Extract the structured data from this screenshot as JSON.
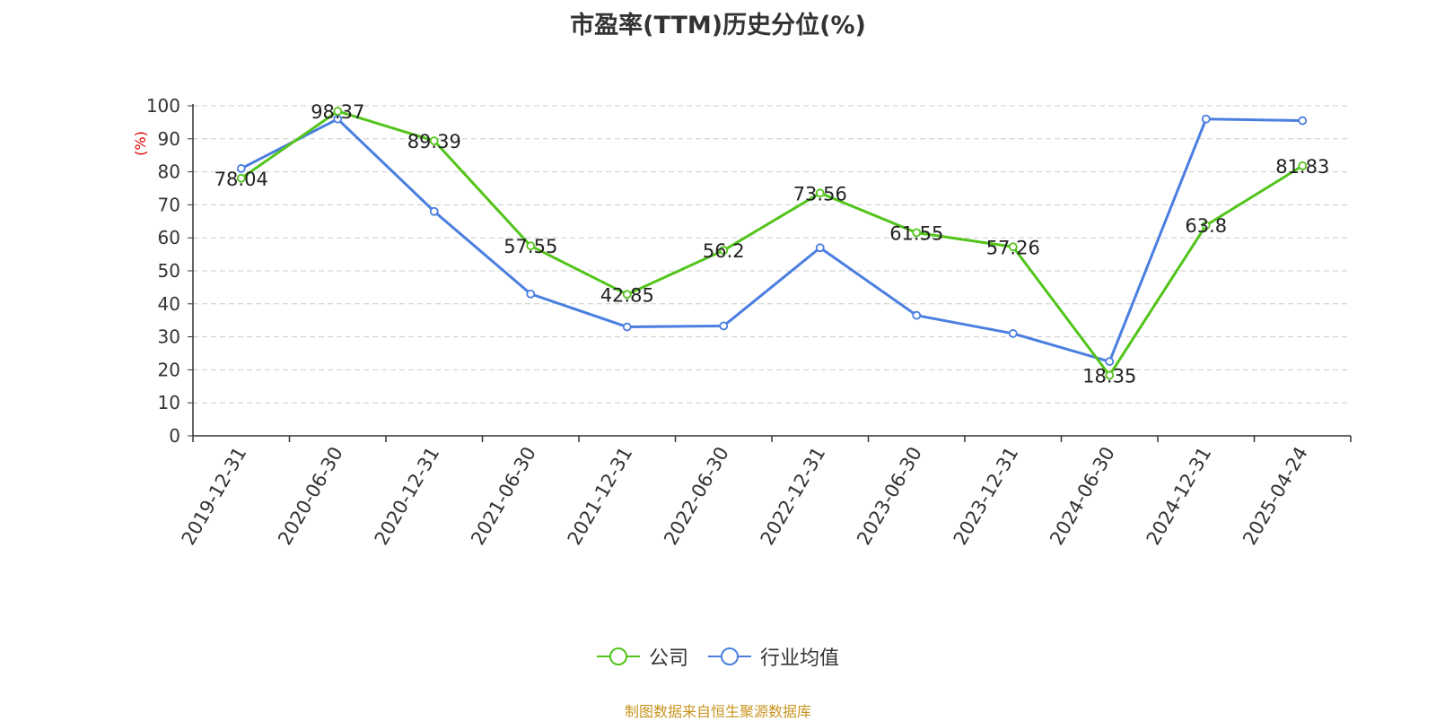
{
  "title": "市盈率(TTM)历史分位(%)",
  "y_unit": "(%)",
  "source": "制图数据来自恒生聚源数据库",
  "colors": {
    "company": "#52c41a",
    "industry": "#4a7ee0",
    "axis": "#333333",
    "grid": "#cccccc",
    "source": "#c89520",
    "unit": "#e60000"
  },
  "chart_data": {
    "type": "line",
    "title": "市盈率(TTM)历史分位(%)",
    "ylabel": "(%)",
    "ylim": [
      0,
      100
    ],
    "yticks": [
      "0",
      "10",
      "20",
      "30",
      "40",
      "50",
      "60",
      "70",
      "80",
      "90",
      "100"
    ],
    "grid": true,
    "legend_position": "bottom",
    "categories": [
      "2019-12-31",
      "2020-06-30",
      "2020-12-31",
      "2021-06-30",
      "2021-12-31",
      "2022-06-30",
      "2022-12-31",
      "2023-06-30",
      "2023-12-31",
      "2024-06-30",
      "2024-12-31",
      "2025-04-24"
    ],
    "series": [
      {
        "name": "公司",
        "color": "#52c41a",
        "labeled": true,
        "values": [
          78.04,
          98.37,
          89.39,
          57.55,
          42.85,
          56.2,
          73.56,
          61.55,
          57.26,
          18.35,
          63.8,
          81.83
        ],
        "labels": [
          "78.04",
          "98.37",
          "89.39",
          "57.55",
          "42.85",
          "56.2",
          "73.56",
          "61.55",
          "57.26",
          "18.35",
          "63.8",
          "81.83"
        ]
      },
      {
        "name": "行业均值",
        "color": "#4a7ee0",
        "labeled": false,
        "values": [
          81,
          96,
          68,
          43,
          33,
          33.3,
          57,
          36.5,
          31,
          22.5,
          96,
          95.5
        ]
      }
    ]
  }
}
